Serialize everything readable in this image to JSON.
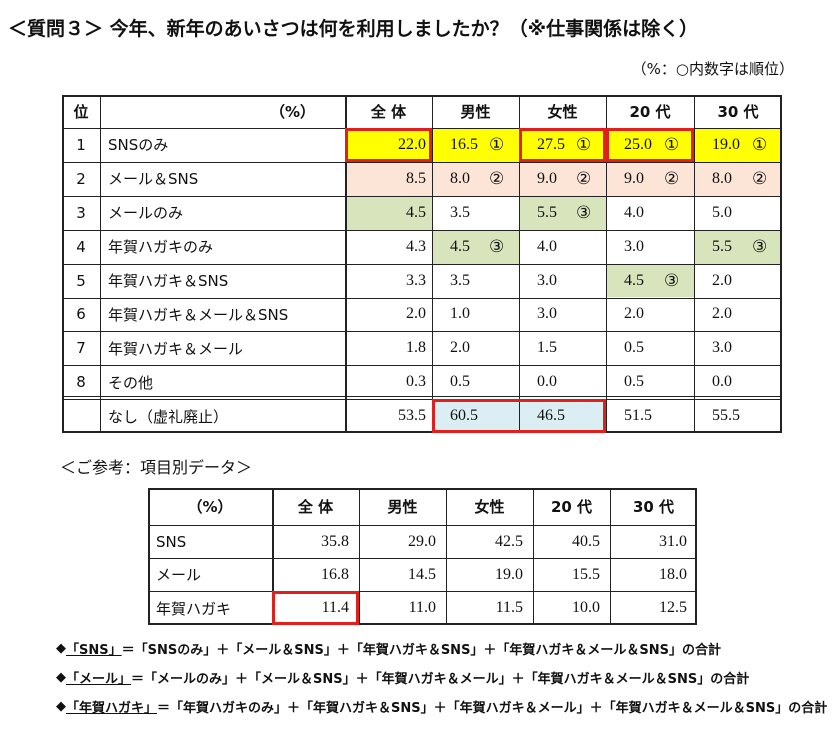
{
  "title": "＜質問３＞ 今年、新年のあいさつは何を利用しましたか？（※仕事関係は除く）",
  "subtitle": "（%：○内数字は順位）",
  "main_table": {
    "header": [
      "位",
      "（%）",
      "全 体",
      "男性",
      "女性",
      "20 代",
      "30 代"
    ],
    "rows": [
      {
        "rank": "1",
        "label": "SNSのみ",
        "cells": [
          {
            "value": "22.0",
            "color": "#ffff00"
          },
          {
            "value": "16.5",
            "rank": "①",
            "color": "#ffff00"
          },
          {
            "value": "27.5",
            "rank": "①",
            "color": "#ffff00"
          },
          {
            "value": "25.0",
            "rank": "①",
            "color": "#ffff00"
          },
          {
            "value": "19.0",
            "rank": "①",
            "color": "#ffff00"
          }
        ]
      },
      {
        "rank": "2",
        "label": "メール＆SNS",
        "cells": [
          {
            "value": "8.5",
            "color": "#fce4d6"
          },
          {
            "value": "8.0",
            "rank": "②",
            "color": "#fce4d6"
          },
          {
            "value": "9.0",
            "rank": "②",
            "color": "#fce4d6"
          },
          {
            "value": "9.0",
            "rank": "②",
            "color": "#fce4d6"
          },
          {
            "value": "8.0",
            "rank": "②",
            "color": "#fce4d6"
          }
        ]
      },
      {
        "rank": "3",
        "label": "メールのみ",
        "cells": [
          {
            "value": "4.5",
            "color": "#d8e4bc"
          },
          {
            "value": "3.5"
          },
          {
            "value": "5.5",
            "rank": "③",
            "color": "#d8e4bc"
          },
          {
            "value": "4.0"
          },
          {
            "value": "5.0"
          }
        ]
      },
      {
        "rank": "4",
        "label": "年賀ハガキのみ",
        "cells": [
          {
            "value": "4.3"
          },
          {
            "value": "4.5",
            "rank": "③",
            "color": "#d8e4bc"
          },
          {
            "value": "4.0"
          },
          {
            "value": "3.0"
          },
          {
            "value": "5.5",
            "rank": "③",
            "color": "#d8e4bc"
          }
        ]
      },
      {
        "rank": "5",
        "label": "年賀ハガキ＆SNS",
        "cells": [
          {
            "value": "3.3"
          },
          {
            "value": "3.5"
          },
          {
            "value": "3.0"
          },
          {
            "value": "4.5",
            "rank": "③",
            "color": "#d8e4bc"
          },
          {
            "value": "2.0"
          }
        ]
      },
      {
        "rank": "6",
        "label": "年賀ハガキ＆メール＆SNS",
        "cells": [
          {
            "value": "2.0"
          },
          {
            "value": "1.0"
          },
          {
            "value": "3.0"
          },
          {
            "value": "2.0"
          },
          {
            "value": "2.0"
          }
        ]
      },
      {
        "rank": "7",
        "label": "年賀ハガキ＆メール",
        "cells": [
          {
            "value": "1.8"
          },
          {
            "value": "2.0"
          },
          {
            "value": "1.5"
          },
          {
            "value": "0.5"
          },
          {
            "value": "3.0"
          }
        ]
      },
      {
        "rank": "8",
        "label": "その他",
        "cells": [
          {
            "value": "0.3"
          },
          {
            "value": "0.5"
          },
          {
            "value": "0.0"
          },
          {
            "value": "0.5"
          },
          {
            "value": "0.0"
          }
        ]
      },
      {
        "label": "なし（虚礼廃止）",
        "cells": [
          {
            "value": "53.5"
          },
          {
            "value": "60.5",
            "color": "#daeef3"
          },
          {
            "value": "46.5",
            "color": "#daeef3"
          },
          {
            "value": "51.5"
          },
          {
            "value": "55.5"
          }
        ]
      }
    ]
  },
  "reference_title": "＜ご参考：項目別データ＞",
  "reference_table": {
    "header": [
      "（%）",
      "全 体",
      "男性",
      "女性",
      "20 代",
      "30 代"
    ],
    "rows": [
      {
        "label": "SNS",
        "values": [
          "35.8",
          "29.0",
          "42.5",
          "40.5",
          "31.0"
        ]
      },
      {
        "label": "メール",
        "values": [
          "16.8",
          "14.5",
          "19.0",
          "15.5",
          "18.0"
        ]
      },
      {
        "label": "年賀ハガキ",
        "values": [
          "11.4",
          "11.0",
          "11.5",
          "10.0",
          "12.5"
        ]
      }
    ]
  },
  "notes": [
    {
      "mark": "◆",
      "term": "「SNS」",
      "text": "＝「SNSのみ」＋「メール＆SNS」＋「年賀ハガキ＆SNS」＋「年賀ハガキ＆メール＆SNS」の合計"
    },
    {
      "mark": "◆",
      "term": "「メール」",
      "text": "＝「メールのみ」＋「メール＆SNS」＋「年賀ハガキ＆メール」＋「年賀ハガキ＆メール＆SNS」の合計"
    },
    {
      "mark": "◆",
      "term": "「年賀ハガキ」",
      "text": "＝「年賀ハガキのみ」＋「年賀ハガキ＆SNS」＋「年賀ハガキ＆メール」＋「年賀ハガキ＆メール＆SNS」の合計"
    }
  ]
}
